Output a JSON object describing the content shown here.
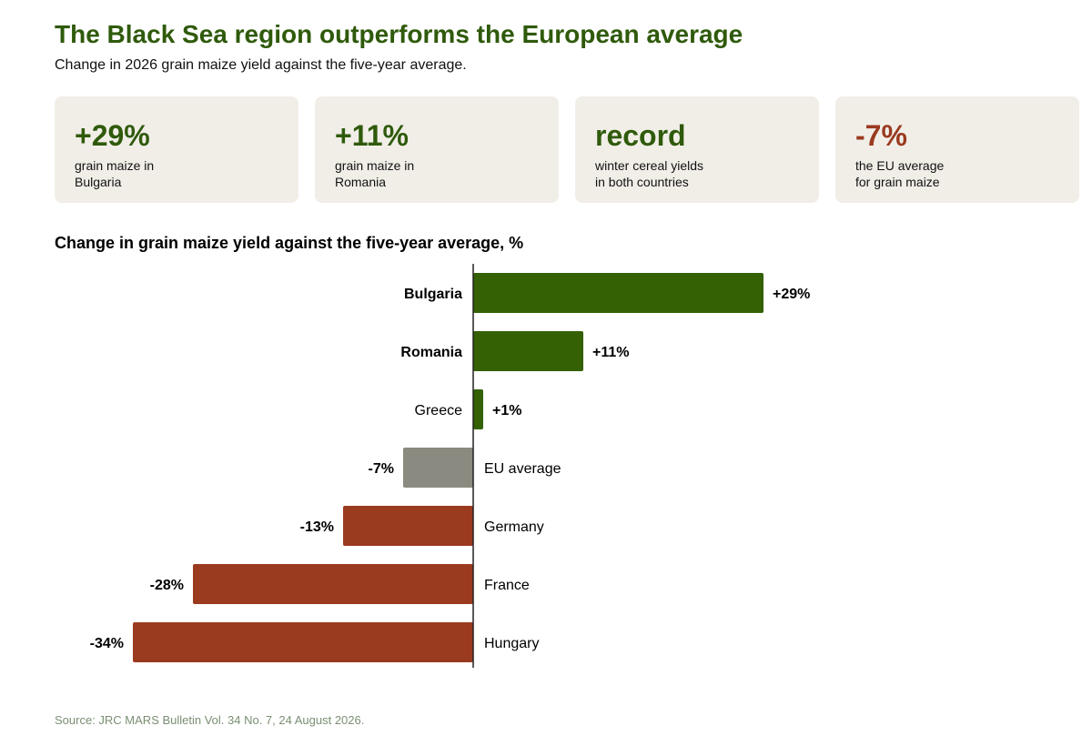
{
  "header": {
    "title": "The Black Sea region outperforms the European average",
    "subtitle": "Change in 2026 grain maize yield against the five-year average."
  },
  "cards": [
    {
      "value": "+29%",
      "desc": "grain maize in\nBulgaria",
      "color": "#2f5a0b"
    },
    {
      "value": "+11%",
      "desc": "grain maize in\nRomania",
      "color": "#2f5a0b"
    },
    {
      "value": "record",
      "desc": "winter cereal yields\nin both countries",
      "color": "#2f5a0b"
    },
    {
      "value": "-7%",
      "desc": "the EU average\nfor grain maize",
      "color": "#9a3a1f"
    }
  ],
  "chart_data": {
    "type": "bar",
    "orientation": "horizontal",
    "title": "Change in grain maize yield against the five-year average, %",
    "categories": [
      "Bulgaria",
      "Romania",
      "Greece",
      "EU average",
      "Germany",
      "France",
      "Hungary"
    ],
    "values": [
      29,
      11,
      1,
      -7,
      -13,
      -28,
      -34
    ],
    "value_labels": [
      "+29%",
      "+11%",
      "+1%",
      "-7%",
      "-13%",
      "-28%",
      "-34%"
    ],
    "bold_categories": [
      "Bulgaria",
      "Romania"
    ],
    "colors": {
      "positive": "#336104",
      "eu_average": "#8b8a80",
      "negative": "#9a3a1f"
    },
    "grid": false
  },
  "footer": {
    "source": "Source: JRC MARS Bulletin Vol. 34 No. 7, 24 August 2026."
  }
}
